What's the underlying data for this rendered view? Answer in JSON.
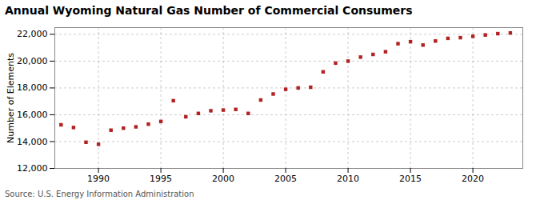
{
  "chart_data": {
    "type": "scatter",
    "title": "Annual Wyoming Natural Gas Number of Commercial Consumers",
    "ylabel": "Number of Elements",
    "source": "Source: U.S. Energy Information Administration",
    "color": "#b22222",
    "marker": "square",
    "grid": true,
    "x": [
      1987,
      1988,
      1989,
      1990,
      1991,
      1992,
      1993,
      1994,
      1995,
      1996,
      1997,
      1998,
      1999,
      2000,
      2001,
      2002,
      2003,
      2004,
      2005,
      2006,
      2007,
      2008,
      2009,
      2010,
      2011,
      2012,
      2013,
      2014,
      2015,
      2016,
      2017,
      2018,
      2019,
      2020,
      2021,
      2022,
      2023
    ],
    "values": [
      15250,
      15050,
      13950,
      13800,
      14850,
      15000,
      15100,
      15300,
      15500,
      17050,
      15850,
      16100,
      16300,
      16350,
      16400,
      16100,
      17100,
      17550,
      17900,
      18000,
      18050,
      19200,
      19850,
      20000,
      20300,
      20500,
      20700,
      21300,
      21450,
      21200,
      21500,
      21700,
      21750,
      21850,
      21950,
      22050,
      22100
    ],
    "xlim": [
      1986.5,
      2024
    ],
    "xticks": [
      1990,
      1995,
      2000,
      2005,
      2010,
      2015,
      2020
    ],
    "ylim": [
      12000,
      22500
    ],
    "yticks": [
      {
        "value": 12000,
        "label": "12,000"
      },
      {
        "value": 14000,
        "label": "14,000"
      },
      {
        "value": 16000,
        "label": "16,000"
      },
      {
        "value": 18000,
        "label": "18,000"
      },
      {
        "value": 20000,
        "label": "20,000"
      },
      {
        "value": 22000,
        "label": "22,000"
      }
    ]
  }
}
